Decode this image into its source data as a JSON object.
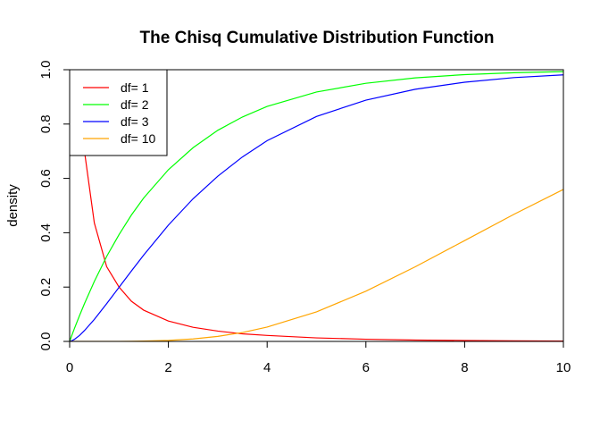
{
  "chart_data": {
    "type": "line",
    "title": "The Chisq Cumulative Distribution Function",
    "xlabel": "",
    "ylabel": "density",
    "xlim": [
      0,
      10
    ],
    "ylim": [
      0,
      1
    ],
    "x_ticks": [
      "0",
      "2",
      "4",
      "6",
      "8",
      "10"
    ],
    "y_ticks": [
      "0.0",
      "0.2",
      "0.4",
      "0.6",
      "0.8",
      "1.0"
    ],
    "grid": false,
    "legend_position": "top-left",
    "x": [
      0,
      0.05,
      0.1,
      0.2,
      0.3,
      0.5,
      0.75,
      1,
      1.25,
      1.5,
      2,
      2.5,
      3,
      3.5,
      4,
      5,
      6,
      7,
      8,
      9,
      10
    ],
    "series": [
      {
        "name": "df= 1",
        "color": "#ff0000",
        "values": [
          1.0,
          1.0,
          1.0,
          1.0,
          0.7,
          0.436,
          0.275,
          0.2,
          0.148,
          0.115,
          0.075,
          0.052,
          0.038,
          0.028,
          0.022,
          0.013,
          0.008,
          0.005,
          0.0035,
          0.0022,
          0.0015
        ]
      },
      {
        "name": "df= 2",
        "color": "#00ff00",
        "values": [
          0,
          0.025,
          0.049,
          0.095,
          0.139,
          0.221,
          0.313,
          0.393,
          0.465,
          0.528,
          0.632,
          0.713,
          0.777,
          0.826,
          0.865,
          0.918,
          0.95,
          0.97,
          0.982,
          0.989,
          0.993
        ]
      },
      {
        "name": "df= 3",
        "color": "#0000ff",
        "values": [
          0,
          0.003,
          0.008,
          0.022,
          0.04,
          0.081,
          0.139,
          0.199,
          0.259,
          0.318,
          0.428,
          0.525,
          0.608,
          0.679,
          0.739,
          0.828,
          0.888,
          0.928,
          0.954,
          0.971,
          0.981
        ]
      },
      {
        "name": "df= 10",
        "color": "#ffa500",
        "values": [
          0,
          0,
          0,
          0,
          0,
          0,
          0,
          0.0002,
          0.0006,
          0.0013,
          0.0037,
          0.0091,
          0.0186,
          0.0326,
          0.0527,
          0.1088,
          0.1847,
          0.2746,
          0.3712,
          0.4679,
          0.5595
        ]
      }
    ]
  }
}
